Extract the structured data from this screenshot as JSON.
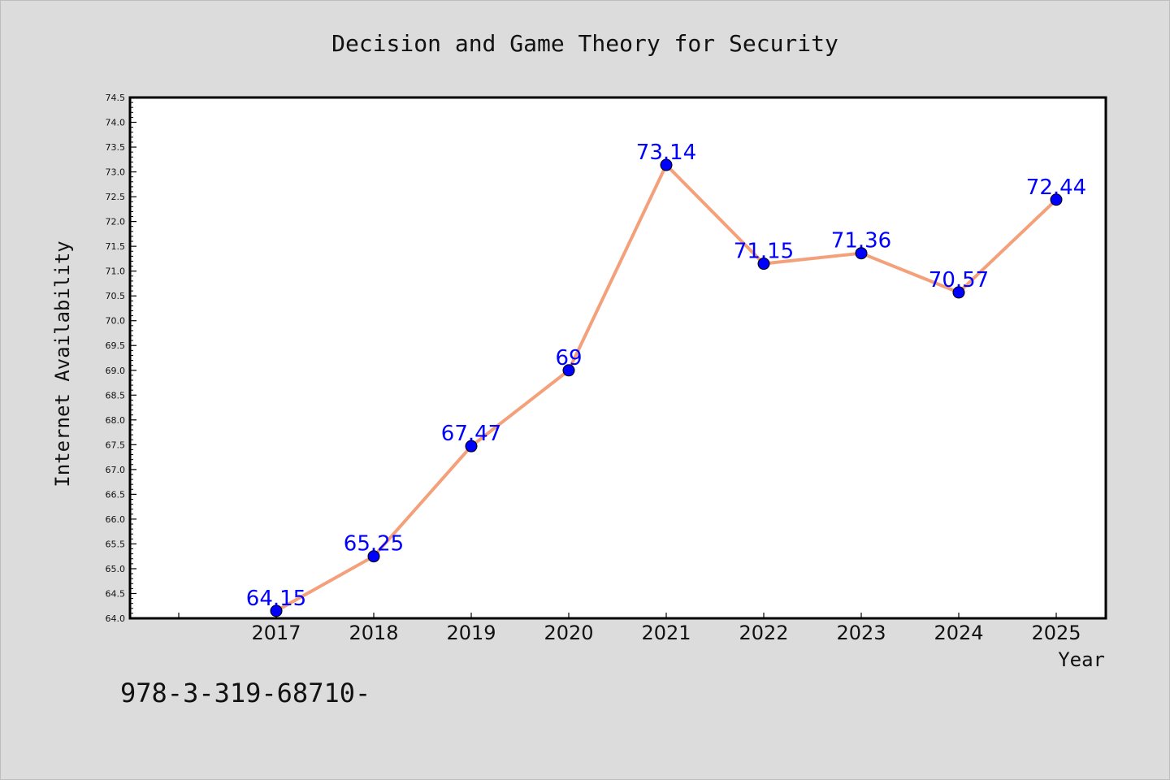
{
  "footer_text": "978-3-319-68710-",
  "colors": {
    "line": "#f4a07a",
    "marker": "#0000ff",
    "label": "#0000ff",
    "background": "#dcdcdc",
    "plot_bg": "#ffffff"
  },
  "chart_data": {
    "type": "line",
    "title": "Decision and Game Theory for Security",
    "xlabel": "Year",
    "ylabel": "Internet Availability",
    "x": [
      "2017",
      "2018",
      "2019",
      "2020",
      "2021",
      "2022",
      "2023",
      "2024",
      "2025"
    ],
    "series": [
      {
        "values": [
          64.15,
          65.25,
          67.47,
          69,
          73.14,
          71.15,
          71.36,
          70.57,
          72.44
        ]
      }
    ],
    "data_labels": [
      "64.15",
      "65.25",
      "67.47",
      "69",
      "73.14",
      "71.15",
      "71.36",
      "70.57",
      "72.44"
    ],
    "ylim": [
      64.0,
      74.5
    ],
    "yticks": [
      "64.0",
      "64.5",
      "65.0",
      "65.5",
      "66.0",
      "66.5",
      "67.0",
      "67.5",
      "68.0",
      "68.5",
      "69.0",
      "69.5",
      "70.0",
      "70.5",
      "71.0",
      "71.5",
      "72.0",
      "72.5",
      "73.0",
      "73.5",
      "74.0",
      "74.5"
    ],
    "grid": false,
    "legend": "none"
  }
}
